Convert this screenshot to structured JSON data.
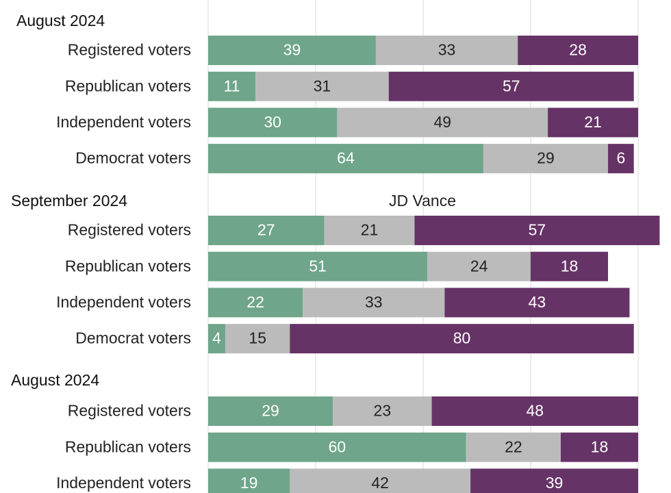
{
  "chart_data": {
    "type": "bar",
    "orientation": "horizontal",
    "stacked": true,
    "xlim": [
      0,
      100
    ],
    "grid": true,
    "colors": [
      "#6fa58a",
      "#bbbbbb",
      "#663366"
    ],
    "groups": [
      {
        "title": "August 2024",
        "subtitle": "",
        "categories": [
          "Registered voters",
          "Republican voters",
          "Independent voters",
          "Democrat voters"
        ],
        "series": [
          {
            "values": [
              39,
              11,
              30,
              64
            ]
          },
          {
            "values": [
              33,
              31,
              49,
              29
            ]
          },
          {
            "values": [
              28,
              57,
              21,
              6
            ]
          }
        ]
      },
      {
        "title": "September 2024",
        "subtitle": "JD Vance",
        "categories": [
          "Registered voters",
          "Republican voters",
          "Independent voters",
          "Democrat voters"
        ],
        "series": [
          {
            "values": [
              27,
              51,
              22,
              4
            ]
          },
          {
            "values": [
              21,
              24,
              33,
              15
            ]
          },
          {
            "values": [
              57,
              18,
              43,
              80
            ]
          }
        ]
      },
      {
        "title": "August 2024",
        "subtitle": "",
        "categories": [
          "Registered voters",
          "Republican voters",
          "Independent voters"
        ],
        "series": [
          {
            "values": [
              29,
              60,
              19
            ]
          },
          {
            "values": [
              23,
              22,
              42
            ]
          },
          {
            "values": [
              48,
              18,
              39
            ]
          }
        ]
      }
    ]
  }
}
